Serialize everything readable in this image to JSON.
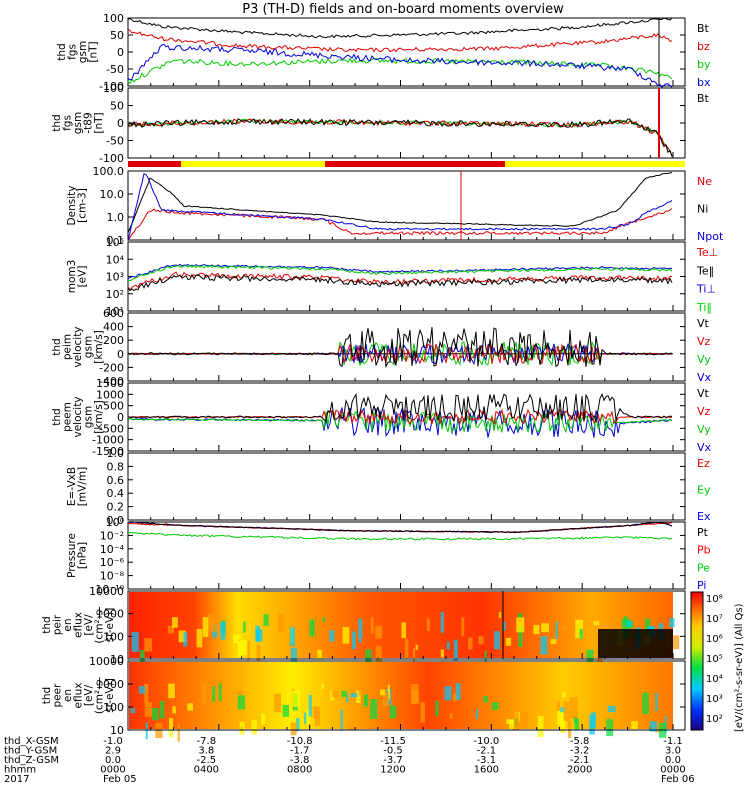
{
  "title": "P3 (TH-D) fields and on-board moments overview",
  "colors": {
    "black": "#000000",
    "red": "#e00000",
    "green": "#00cc00",
    "blue": "#0000dd",
    "yellow": "#ffff00"
  },
  "panels": [
    {
      "id": "fgs",
      "ylabel": [
        "thd",
        "fgs",
        "gsm",
        "[nT]"
      ],
      "yticks": [
        "100",
        "50",
        "0",
        "-50",
        "-100"
      ],
      "legend": [
        {
          "text": "Bt",
          "color": "black"
        },
        {
          "text": "bz",
          "color": "red"
        },
        {
          "text": "by",
          "color": "green"
        },
        {
          "text": "bx",
          "color": "blue"
        }
      ]
    },
    {
      "id": "fgs-dc",
      "ylabel": [
        "thd",
        "fgs",
        "gsm",
        "-t89",
        "[nT]"
      ],
      "yticks": [
        "100",
        "50",
        "0",
        "-50",
        "-100"
      ],
      "legend": [
        {
          "text": "Bt",
          "color": "black"
        }
      ]
    },
    {
      "id": "density",
      "ylabel": [
        "Density",
        "[cm-3]"
      ],
      "yticks": [
        "100.0",
        "10.0",
        "1.0",
        "0.1"
      ],
      "legend": [
        {
          "text": "Ne",
          "color": "red"
        },
        {
          "text": "Ni",
          "color": "black"
        },
        {
          "text": "Npot",
          "color": "blue"
        }
      ]
    },
    {
      "id": "temp",
      "ylabel": [
        "mom3",
        "[eV]"
      ],
      "yticks": [
        "10⁵",
        "10⁴",
        "10³",
        "10²",
        "10¹"
      ],
      "legend": [
        {
          "text": "Te⊥",
          "color": "red"
        },
        {
          "text": "Te‖",
          "color": "black"
        },
        {
          "text": "Ti⊥",
          "color": "blue"
        },
        {
          "text": "Ti‖",
          "color": "green"
        }
      ]
    },
    {
      "id": "peim",
      "ylabel": [
        "thd",
        "peim",
        "velocity",
        "gsm",
        "[km/s]"
      ],
      "yticks": [
        "600",
        "400",
        "200",
        "0",
        "-200",
        "-400"
      ],
      "legend": [
        {
          "text": "Vt",
          "color": "black"
        },
        {
          "text": "Vz",
          "color": "red"
        },
        {
          "text": "Vy",
          "color": "green"
        },
        {
          "text": "Vx",
          "color": "blue"
        }
      ]
    },
    {
      "id": "peem",
      "ylabel": [
        "thd",
        "peem",
        "velocity",
        "gsm",
        "[km/s]"
      ],
      "yticks": [
        "1500",
        "1000",
        "500",
        "0",
        "-500",
        "-1000",
        "-1500"
      ],
      "legend": [
        {
          "text": "Vt",
          "color": "black"
        },
        {
          "text": "Vz",
          "color": "red"
        },
        {
          "text": "Vy",
          "color": "green"
        },
        {
          "text": "Vx",
          "color": "blue"
        }
      ]
    },
    {
      "id": "efield",
      "ylabel": [
        "E=-VxB",
        "[mV/m]"
      ],
      "yticks": [
        "1.0",
        "0.8",
        "0.6",
        "0.4",
        "0.2",
        "0.0"
      ],
      "legend": [
        {
          "text": "Ez",
          "color": "red"
        },
        {
          "text": "Ey",
          "color": "green"
        },
        {
          "text": "Ex",
          "color": "blue"
        }
      ]
    },
    {
      "id": "pressure",
      "ylabel": [
        "Pressure",
        "[nPa]"
      ],
      "yticks": [
        "10⁰",
        "10⁻²",
        "10⁻⁴",
        "10⁻⁶",
        "10⁻⁸",
        "10⁻¹⁰"
      ],
      "legend": [
        {
          "text": "Pt",
          "color": "black"
        },
        {
          "text": "Pb",
          "color": "red"
        },
        {
          "text": "Pe",
          "color": "green"
        },
        {
          "text": "Pi",
          "color": "blue"
        }
      ]
    },
    {
      "id": "peir",
      "ylabel": [
        "thd",
        "peir",
        "en",
        "eflux",
        "[eV/",
        "(cm²-s-",
        "sr-eV)]"
      ],
      "yticks": [
        "10000",
        "1000",
        "100",
        "10"
      ],
      "legend": []
    },
    {
      "id": "peer",
      "ylabel": [
        "thd",
        "peer",
        "en",
        "eflux",
        "[eV/",
        "(cm²-s-",
        "sr-eV)]"
      ],
      "yticks": [
        "10000",
        "1000",
        "100",
        "10"
      ],
      "legend": []
    }
  ],
  "colorbar": {
    "ticks": [
      "10⁸",
      "10⁷",
      "10⁶",
      "10⁵",
      "10⁴",
      "10³",
      "10²"
    ],
    "label": "[eV/(cm²-s-sr-eV)] (All Qs)"
  },
  "xaxis": {
    "rows": [
      {
        "label": "thd_X-GSM",
        "values": [
          "-1.0",
          "-7.8",
          "-10.8",
          "-11.5",
          "-10.0",
          "-5.8",
          "-1.1"
        ]
      },
      {
        "label": "thd_Y-GSM",
        "values": [
          "2.9",
          "3.8",
          "-1.7",
          "-0.5",
          "-2.1",
          "-3.2",
          "3.0"
        ]
      },
      {
        "label": "thd_Z-GSM",
        "values": [
          "0.0",
          "-2.5",
          "-3.8",
          "-3.7",
          "-3.1",
          "-2.1",
          "0.0"
        ]
      },
      {
        "label": "hhmm",
        "values": [
          "0000",
          "0400",
          "0800",
          "1200",
          "1600",
          "2000",
          "0000"
        ]
      }
    ],
    "year": "2017",
    "start_date": "Feb 05",
    "end_date": "Feb 06"
  },
  "chart_data": {
    "type": "line",
    "title": "P3 (TH-D) fields and on-board moments overview",
    "x": [
      "0000",
      "0400",
      "0800",
      "1200",
      "1600",
      "2000",
      "0000"
    ],
    "series": [
      {
        "name": "Bt",
        "panel": "fgs",
        "values": [
          100,
          65,
          40,
          45,
          60,
          85,
          100
        ]
      },
      {
        "name": "bz",
        "panel": "fgs",
        "values": [
          60,
          20,
          0,
          5,
          15,
          25,
          60
        ]
      },
      {
        "name": "by",
        "panel": "fgs",
        "values": [
          -60,
          -30,
          -30,
          -20,
          -25,
          -35,
          -60
        ]
      },
      {
        "name": "bx",
        "panel": "fgs",
        "values": [
          15,
          0,
          -25,
          -20,
          -25,
          -35,
          -100
        ]
      },
      {
        "name": "Ni",
        "panel": "density",
        "values": [
          100,
          3,
          1.2,
          0.4,
          0.3,
          0.3,
          100
        ]
      },
      {
        "name": "Ne",
        "panel": "density",
        "values": [
          30,
          2,
          1,
          0.3,
          0.3,
          0.3,
          10
        ]
      },
      {
        "name": "Pt",
        "panel": "pressure",
        "values": [
          1,
          0.3,
          0.05,
          0.02,
          0.02,
          0.06,
          1
        ]
      }
    ]
  }
}
